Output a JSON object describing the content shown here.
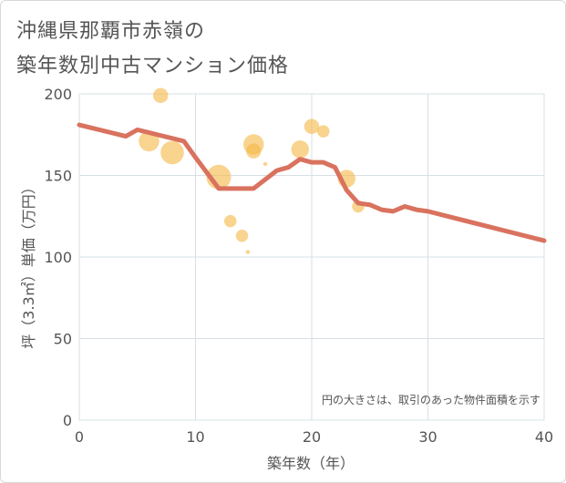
{
  "chart_data": {
    "type": "scatter",
    "title_lines": [
      "沖縄県那覇市赤嶺の",
      "築年数別中古マンション価格"
    ],
    "xlabel": "築年数（年）",
    "ylabel": "坪（3.3㎡）単価（万円）",
    "xlim": [
      0,
      40
    ],
    "ylim": [
      0,
      200
    ],
    "x_ticks": [
      0,
      10,
      20,
      30,
      40
    ],
    "y_ticks": [
      0,
      50,
      100,
      150,
      200
    ],
    "grid": true,
    "annotation": "円の大きさは、取引のあった物件面積を示す",
    "colors": {
      "bubble": "#f5b845",
      "trend": "#d9725e",
      "grid": "#d7e0e6",
      "axis_text": "#555555"
    },
    "bubbles": [
      {
        "x": 6,
        "y": 171,
        "size": 0.65
      },
      {
        "x": 7,
        "y": 199,
        "size": 0.45
      },
      {
        "x": 8,
        "y": 164,
        "size": 0.75
      },
      {
        "x": 12,
        "y": 149,
        "size": 0.8
      },
      {
        "x": 13,
        "y": 122,
        "size": 0.35
      },
      {
        "x": 14,
        "y": 113,
        "size": 0.35
      },
      {
        "x": 14.5,
        "y": 103,
        "size": 0.05
      },
      {
        "x": 15,
        "y": 169,
        "size": 0.65
      },
      {
        "x": 15,
        "y": 165,
        "size": 0.45
      },
      {
        "x": 16,
        "y": 157,
        "size": 0.05
      },
      {
        "x": 19,
        "y": 166,
        "size": 0.55
      },
      {
        "x": 20,
        "y": 180,
        "size": 0.45
      },
      {
        "x": 21,
        "y": 177,
        "size": 0.35
      },
      {
        "x": 23,
        "y": 148,
        "size": 0.55
      },
      {
        "x": 24,
        "y": 131,
        "size": 0.35
      }
    ],
    "trend": {
      "x": [
        0,
        4,
        5,
        9,
        10,
        12,
        13,
        14,
        15,
        17,
        18,
        19,
        20,
        21,
        22,
        23,
        24,
        25,
        26,
        27,
        28,
        29,
        30,
        40
      ],
      "y": [
        181,
        174,
        178,
        171,
        161,
        142,
        142,
        142,
        142,
        153,
        155,
        160,
        158,
        158,
        155,
        141,
        133,
        132,
        129,
        128,
        131,
        129,
        128,
        110
      ]
    }
  }
}
